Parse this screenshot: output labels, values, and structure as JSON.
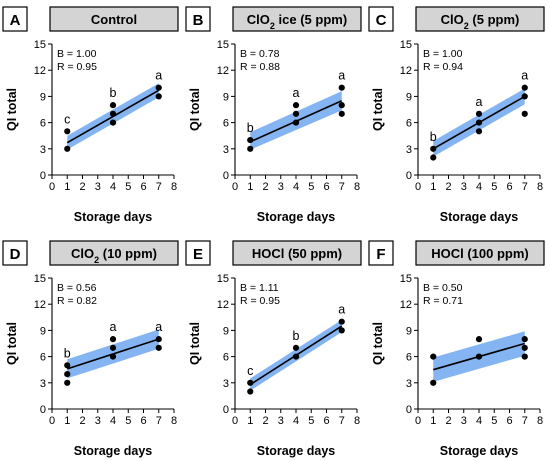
{
  "chart_data": [
    {
      "panel": "A",
      "type": "scatter",
      "title_parts": [
        {
          "t": "Control"
        }
      ],
      "xlabel": "Storage days",
      "ylabel": "QI total",
      "xlim": [
        0,
        8
      ],
      "ylim": [
        0,
        15
      ],
      "x_ticks": [
        0,
        1,
        2,
        3,
        4,
        5,
        6,
        7,
        8
      ],
      "y_ticks": [
        0,
        3,
        6,
        9,
        12,
        15
      ],
      "stats": [
        "B = 1.00",
        "R = 0.95"
      ],
      "points": [
        [
          1,
          3
        ],
        [
          1,
          5
        ],
        [
          4,
          6
        ],
        [
          4,
          7
        ],
        [
          4,
          8
        ],
        [
          7,
          9
        ],
        [
          7,
          10
        ]
      ],
      "fit": {
        "x": [
          1,
          7
        ],
        "y": [
          3.7,
          9.7
        ]
      },
      "ci_lower": [
        2.9,
        8.9
      ],
      "ci_upper": [
        4.5,
        10.5
      ],
      "group_letters": [
        {
          "x": 1,
          "y": 5,
          "text": "c"
        },
        {
          "x": 4,
          "y": 8,
          "text": "b"
        },
        {
          "x": 7,
          "y": 10,
          "text": "a"
        }
      ],
      "grid": false
    },
    {
      "panel": "B",
      "type": "scatter",
      "title_parts": [
        {
          "t": "ClO"
        },
        {
          "t": "2",
          "sub": true
        },
        {
          "t": " ice (5 ppm)"
        }
      ],
      "xlabel": "Storage days",
      "ylabel": "QI total",
      "xlim": [
        0,
        8
      ],
      "ylim": [
        0,
        15
      ],
      "x_ticks": [
        0,
        1,
        2,
        3,
        4,
        5,
        6,
        7,
        8
      ],
      "y_ticks": [
        0,
        3,
        6,
        9,
        12,
        15
      ],
      "stats": [
        "B = 0.78",
        "R = 0.88"
      ],
      "points": [
        [
          1,
          3
        ],
        [
          1,
          4
        ],
        [
          4,
          6
        ],
        [
          4,
          7
        ],
        [
          4,
          8
        ],
        [
          7,
          7
        ],
        [
          7,
          8
        ],
        [
          7,
          10
        ]
      ],
      "fit": {
        "x": [
          1,
          7
        ],
        "y": [
          3.8,
          8.5
        ]
      },
      "ci_lower": [
        2.9,
        7.4
      ],
      "ci_upper": [
        4.9,
        9.6
      ],
      "group_letters": [
        {
          "x": 1,
          "y": 4,
          "text": "b"
        },
        {
          "x": 4,
          "y": 8,
          "text": "a"
        },
        {
          "x": 7,
          "y": 10,
          "text": "a"
        }
      ],
      "grid": false
    },
    {
      "panel": "C",
      "type": "scatter",
      "title_parts": [
        {
          "t": "ClO"
        },
        {
          "t": "2",
          "sub": true
        },
        {
          "t": " (5 ppm)"
        }
      ],
      "xlabel": "Storage days",
      "ylabel": "QI total",
      "xlim": [
        0,
        8
      ],
      "ylim": [
        0,
        15
      ],
      "x_ticks": [
        0,
        1,
        2,
        3,
        4,
        5,
        6,
        7,
        8
      ],
      "y_ticks": [
        0,
        3,
        6,
        9,
        12,
        15
      ],
      "stats": [
        "B = 1.00",
        "R = 0.94"
      ],
      "points": [
        [
          1,
          2
        ],
        [
          1,
          3
        ],
        [
          4,
          5
        ],
        [
          4,
          6
        ],
        [
          4,
          7
        ],
        [
          7,
          7
        ],
        [
          7,
          9
        ],
        [
          7,
          10
        ]
      ],
      "fit": {
        "x": [
          1,
          7
        ],
        "y": [
          3.0,
          9.0
        ]
      },
      "ci_lower": [
        2.1,
        8.1
      ],
      "ci_upper": [
        3.9,
        9.9
      ],
      "group_letters": [
        {
          "x": 1,
          "y": 3,
          "text": "b"
        },
        {
          "x": 4,
          "y": 7,
          "text": "a"
        },
        {
          "x": 7,
          "y": 10,
          "text": "a"
        }
      ],
      "grid": false
    },
    {
      "panel": "D",
      "type": "scatter",
      "title_parts": [
        {
          "t": "ClO"
        },
        {
          "t": "2",
          "sub": true
        },
        {
          "t": " (10 ppm)"
        }
      ],
      "xlabel": "Storage days",
      "ylabel": "QI total",
      "xlim": [
        0,
        8
      ],
      "ylim": [
        0,
        15
      ],
      "x_ticks": [
        0,
        1,
        2,
        3,
        4,
        5,
        6,
        7,
        8
      ],
      "y_ticks": [
        0,
        3,
        6,
        9,
        12,
        15
      ],
      "stats": [
        "B = 0.56",
        "R = 0.82"
      ],
      "points": [
        [
          1,
          3
        ],
        [
          1,
          4
        ],
        [
          1,
          5
        ],
        [
          4,
          6
        ],
        [
          4,
          7
        ],
        [
          4,
          8
        ],
        [
          7,
          7
        ],
        [
          7,
          8
        ]
      ],
      "fit": {
        "x": [
          1,
          7
        ],
        "y": [
          4.6,
          8.0
        ]
      },
      "ci_lower": [
        3.5,
        6.9
      ],
      "ci_upper": [
        5.7,
        9.1
      ],
      "group_letters": [
        {
          "x": 1,
          "y": 5,
          "text": "b"
        },
        {
          "x": 4,
          "y": 8,
          "text": "a"
        },
        {
          "x": 7,
          "y": 8,
          "text": "a"
        }
      ],
      "grid": false
    },
    {
      "panel": "E",
      "type": "scatter",
      "title_parts": [
        {
          "t": "HOCl (50 ppm)"
        }
      ],
      "xlabel": "Storage days",
      "ylabel": "QI total",
      "xlim": [
        0,
        8
      ],
      "ylim": [
        0,
        15
      ],
      "x_ticks": [
        0,
        1,
        2,
        3,
        4,
        5,
        6,
        7,
        8
      ],
      "y_ticks": [
        0,
        3,
        6,
        9,
        12,
        15
      ],
      "stats": [
        "B = 1.11",
        "R = 0.95"
      ],
      "points": [
        [
          1,
          2
        ],
        [
          1,
          3
        ],
        [
          4,
          6
        ],
        [
          4,
          7
        ],
        [
          7,
          9
        ],
        [
          7,
          10
        ]
      ],
      "fit": {
        "x": [
          1,
          7
        ],
        "y": [
          2.8,
          9.5
        ]
      },
      "ci_lower": [
        2.1,
        8.8
      ],
      "ci_upper": [
        3.5,
        10.2
      ],
      "group_letters": [
        {
          "x": 1,
          "y": 3,
          "text": "c"
        },
        {
          "x": 4,
          "y": 7,
          "text": "b"
        },
        {
          "x": 7,
          "y": 10,
          "text": "a"
        }
      ],
      "grid": false
    },
    {
      "panel": "F",
      "type": "scatter",
      "title_parts": [
        {
          "t": "HOCl (100 ppm)"
        }
      ],
      "xlabel": "Storage days",
      "ylabel": "QI total",
      "xlim": [
        0,
        8
      ],
      "ylim": [
        0,
        15
      ],
      "x_ticks": [
        0,
        1,
        2,
        3,
        4,
        5,
        6,
        7,
        8
      ],
      "y_ticks": [
        0,
        3,
        6,
        9,
        12,
        15
      ],
      "stats": [
        "B = 0.50",
        "R = 0.71"
      ],
      "points": [
        [
          1,
          3
        ],
        [
          1,
          6
        ],
        [
          4,
          6
        ],
        [
          4,
          8
        ],
        [
          7,
          6
        ],
        [
          7,
          7
        ],
        [
          7,
          8
        ]
      ],
      "fit": {
        "x": [
          1,
          7
        ],
        "y": [
          4.5,
          7.5
        ]
      },
      "ci_lower": [
        3.1,
        6.1
      ],
      "ci_upper": [
        5.9,
        8.9
      ],
      "group_letters": [],
      "grid": false
    }
  ],
  "colors": {
    "band": "#6fa8f0",
    "strip": "#d4d4d4",
    "line": "#000000",
    "point": "#000000"
  }
}
